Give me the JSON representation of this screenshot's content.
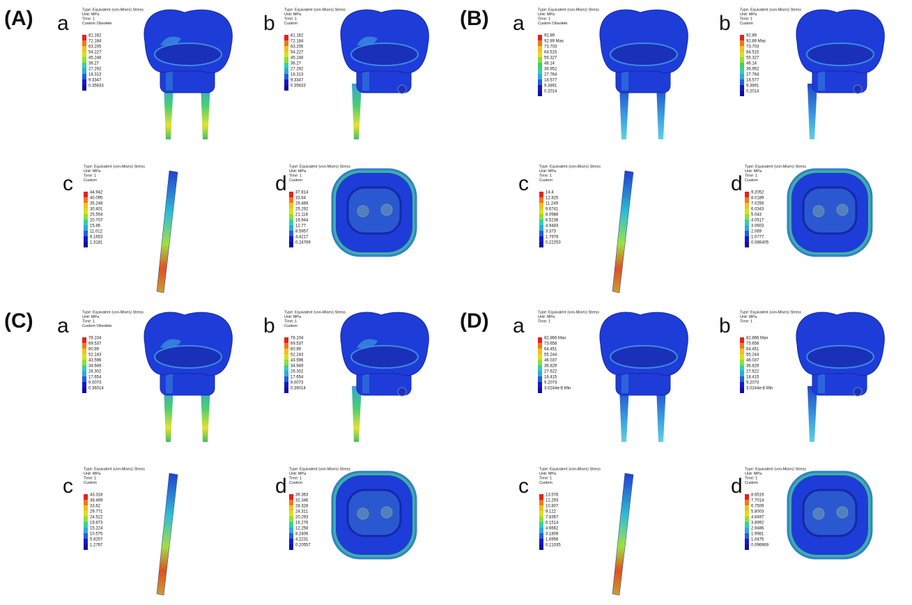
{
  "panels": [
    {
      "label": "(A)",
      "subpanels": [
        {
          "letter": "a",
          "legend": {
            "header": [
              "Type: Equivalent (von-Mises) Stress",
              "Unit: MPa",
              "Time: 1",
              "Custom Obsolete"
            ],
            "values": [
              "81.162",
              "72.184",
              "63.205",
              "54.227",
              "45.248",
              "36.27",
              "27.292",
              "18.313",
              "9.3347",
              "0.35633"
            ]
          }
        },
        {
          "letter": "b",
          "legend": {
            "header": [
              "Type: Equivalent (von-Mises) Stress",
              "Unit: MPa",
              "Time: 1",
              "Custom"
            ],
            "values": [
              "81.162",
              "72.184",
              "63.205",
              "54.227",
              "45.248",
              "36.27",
              "27.292",
              "18.313",
              "9.3347",
              "0.35633"
            ]
          }
        },
        {
          "letter": "c",
          "legend": {
            "header": [
              "Type: Equivalent (von-Mises) Stress",
              "Unit: MPa",
              "Time: 1",
              "Custom"
            ],
            "values": [
              "44.942",
              "40.095",
              "35.248",
              "30.401",
              "25.554",
              "20.707",
              "15.86",
              "11.012",
              "6.1653",
              "1.3181"
            ]
          }
        },
        {
          "letter": "d",
          "legend": {
            "header": [
              "Type: Equivalent (von-Mises) Stress",
              "Unit: MPa",
              "Time: 1",
              "Custom"
            ],
            "values": [
              "37.814",
              "33.64",
              "29.466",
              "25.292",
              "21.118",
              "16.944",
              "12.77",
              "8.5957",
              "4.4217",
              "0.24769"
            ]
          }
        }
      ]
    },
    {
      "label": "(B)",
      "subpanels": [
        {
          "letter": "a",
          "legend": {
            "header": [
              "Type: Equivalent (von-Mises) Stress",
              "Unit: MPa",
              "Time: 1",
              "Custom Obsolete"
            ],
            "values": [
              "92.89",
              "92.89 Max",
              "73.703",
              "64.515",
              "55.327",
              "46.14",
              "36.952",
              "27.764",
              "18.577",
              "9.3891",
              "0.2014"
            ]
          }
        },
        {
          "letter": "b",
          "legend": {
            "header": [
              "Type: Equivalent (von-Mises) Stress",
              "Unit: MPa",
              "Time: 1",
              "Custom"
            ],
            "values": [
              "92.89",
              "92.89 Max",
              "73.703",
              "64.515",
              "55.327",
              "46.14",
              "36.952",
              "27.764",
              "18.577",
              "9.3891",
              "0.2014"
            ]
          }
        },
        {
          "letter": "c",
          "legend": {
            "header": [
              "Type: Equivalent (von-Mises) Stress",
              "Unit: MPa",
              "Time: 1",
              "Custom"
            ],
            "values": [
              "14.4",
              "12.825",
              "11.249",
              "9.6741",
              "8.0988",
              "6.5236",
              "4.9483",
              "3.373",
              "1.7978",
              "0.22253"
            ]
          }
        },
        {
          "letter": "d",
          "legend": {
            "header": [
              "Type: Equivalent (von-Mises) Stress",
              "Unit: MPa",
              "Time: 1",
              "Custom"
            ],
            "values": [
              "9.2052",
              "8.0189",
              "7.0256",
              "6.0343",
              "5.043",
              "4.0517",
              "3.0603",
              "2.069",
              "1.0777",
              "0.086405"
            ]
          }
        }
      ]
    },
    {
      "label": "(C)",
      "subpanels": [
        {
          "letter": "a",
          "legend": {
            "header": [
              "Type: Equivalent (von-Mises) Stress",
              "Unit: MPa",
              "Time: 1",
              "Custom Obsolete"
            ],
            "values": [
              "78.104",
              "69.537",
              "60.89",
              "52.243",
              "43.596",
              "34.949",
              "26.302",
              "17.654",
              "9.0073",
              "0.36014"
            ]
          }
        },
        {
          "letter": "b",
          "legend": {
            "header": [
              "Type: Equivalent (von-Mises) Stress",
              "Unit: MPa",
              "Time: 1",
              "Custom"
            ],
            "values": [
              "78.104",
              "69.537",
              "60.89",
              "52.243",
              "43.596",
              "34.949",
              "26.302",
              "17.654",
              "9.0073",
              "0.36014"
            ]
          }
        },
        {
          "letter": "c",
          "legend": {
            "header": [
              "Type: Equivalent (von-Mises) Stress",
              "Unit: MPa",
              "Time: 1",
              "Custom"
            ],
            "values": [
              "43.318",
              "38.469",
              "33.62",
              "29.771",
              "24.522",
              "19.873",
              "15.224",
              "10.575",
              "5.9257",
              "1.2767"
            ]
          }
        },
        {
          "letter": "d",
          "legend": {
            "header": [
              "Type: Equivalent (von-Mises) Stress",
              "Unit: MPa",
              "Time: 1",
              "Custom"
            ],
            "values": [
              "36.363",
              "32.346",
              "28.328",
              "24.311",
              "20.293",
              "16.276",
              "12.258",
              "8.2406",
              "4.2231",
              "0.20557"
            ]
          }
        }
      ]
    },
    {
      "label": "(D)",
      "subpanels": [
        {
          "letter": "a",
          "legend": {
            "header": [
              "Type: Equivalent (von-Mises) Stress",
              "Unit: MPa",
              "Time: 1"
            ],
            "values": [
              "82.866 Max",
              "73.658",
              "64.451",
              "55.244",
              "46.037",
              "36.829",
              "27.622",
              "18.415",
              "9.2073",
              "3.0244e-6 Min"
            ]
          }
        },
        {
          "letter": "b",
          "legend": {
            "header": [
              "Type: Equivalent (von-Mises) Stress",
              "Unit: MPa",
              "Time: 1"
            ],
            "values": [
              "82.866 Max",
              "73.658",
              "64.451",
              "55.244",
              "46.037",
              "36.829",
              "27.622",
              "18.415",
              "9.2073",
              "3.0244e-6 Min"
            ]
          }
        },
        {
          "letter": "c",
          "legend": {
            "header": [
              "Type: Equivalent (von-Mises) Stress",
              "Unit: MPa",
              "Time: 1",
              "Custom"
            ],
            "values": [
              "13.578",
              "12.293",
              "10.807",
              "9.122",
              "7.8367",
              "6.1514",
              "4.6662",
              "3.1809",
              "1.6956",
              "0.21035"
            ]
          }
        },
        {
          "letter": "d",
          "legend": {
            "header": [
              "Type: Equivalent (von-Mises) Stress",
              "Unit: MPa",
              "Time: 1",
              "Custom"
            ],
            "values": [
              "8.6519",
              "7.7014",
              "6.7509",
              "5.8003",
              "4.8497",
              "3.8992",
              "2.9486",
              "1.9981",
              "1.0475",
              "0.096969"
            ]
          }
        }
      ]
    }
  ]
}
